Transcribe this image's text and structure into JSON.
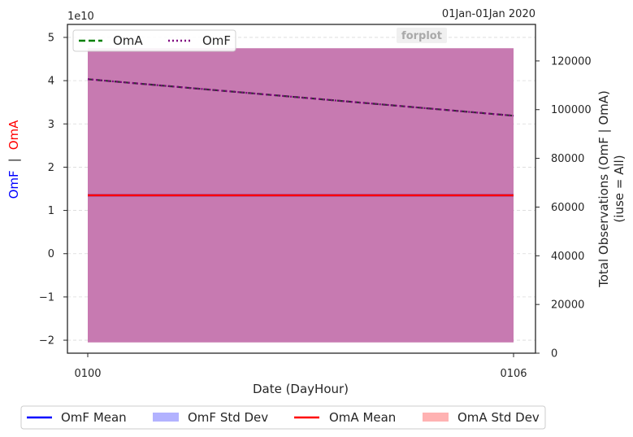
{
  "chart_data": {
    "type": "line",
    "title_right": "01Jan-01Jan 2020",
    "watermark": "forplot",
    "xlabel": "Date (DayHour)",
    "x_ticks": [
      "0100",
      "0106"
    ],
    "left_axis": {
      "label_parts": [
        "OmF",
        "|",
        "OmA"
      ],
      "label_colors": [
        "#0000ff",
        "#262626",
        "#ff0000"
      ],
      "offset_text": "1e10",
      "ylim": [
        -2.3,
        5.3
      ],
      "ticks": [
        -2,
        -1,
        0,
        1,
        2,
        3,
        4,
        5
      ],
      "tick_labels": [
        "−2",
        "−1",
        "0",
        "1",
        "2",
        "3",
        "4",
        "5"
      ]
    },
    "right_axis": {
      "label_line1": "Total Observations (OmF | OmA)",
      "label_line2": "(iuse = All)",
      "ylim": [
        0,
        135000
      ],
      "ticks": [
        0,
        20000,
        40000,
        60000,
        80000,
        100000,
        120000
      ],
      "tick_labels": [
        "0",
        "20000",
        "40000",
        "60000",
        "80000",
        "100000",
        "120000"
      ]
    },
    "x_range": [
      0,
      6
    ],
    "x": [
      0,
      6
    ],
    "series": [
      {
        "name": "OmF Mean",
        "axis": "left",
        "kind": "line",
        "color": "#0000ff",
        "values": [
          1.35,
          1.35
        ]
      },
      {
        "name": "OmF Std Dev",
        "axis": "left",
        "kind": "band",
        "color": "#b2b2ff",
        "lower": [
          -2.05,
          -2.05
        ],
        "upper": [
          4.75,
          4.75
        ]
      },
      {
        "name": "OmA Mean",
        "axis": "left",
        "kind": "line",
        "color": "#ff0000",
        "values": [
          1.35,
          1.35
        ]
      },
      {
        "name": "OmA Std Dev",
        "axis": "left",
        "kind": "band",
        "color": "#ffb2b2",
        "lower": [
          -2.05,
          -2.05
        ],
        "upper": [
          4.75,
          4.75
        ]
      },
      {
        "name": "OmA",
        "axis": "right",
        "kind": "count",
        "style": "dashed",
        "color": "#008000",
        "values": [
          112500,
          97500
        ]
      },
      {
        "name": "OmF",
        "axis": "right",
        "kind": "count",
        "style": "dotted",
        "color": "#800080",
        "values": [
          112500,
          97500
        ]
      }
    ],
    "band_overlap_color": "#c77ab1",
    "grid": true,
    "legend_top": [
      "OmA",
      "OmF"
    ],
    "legend_bottom": [
      "OmF Mean",
      "OmF Std Dev",
      "OmA Mean",
      "OmA Std Dev"
    ]
  }
}
